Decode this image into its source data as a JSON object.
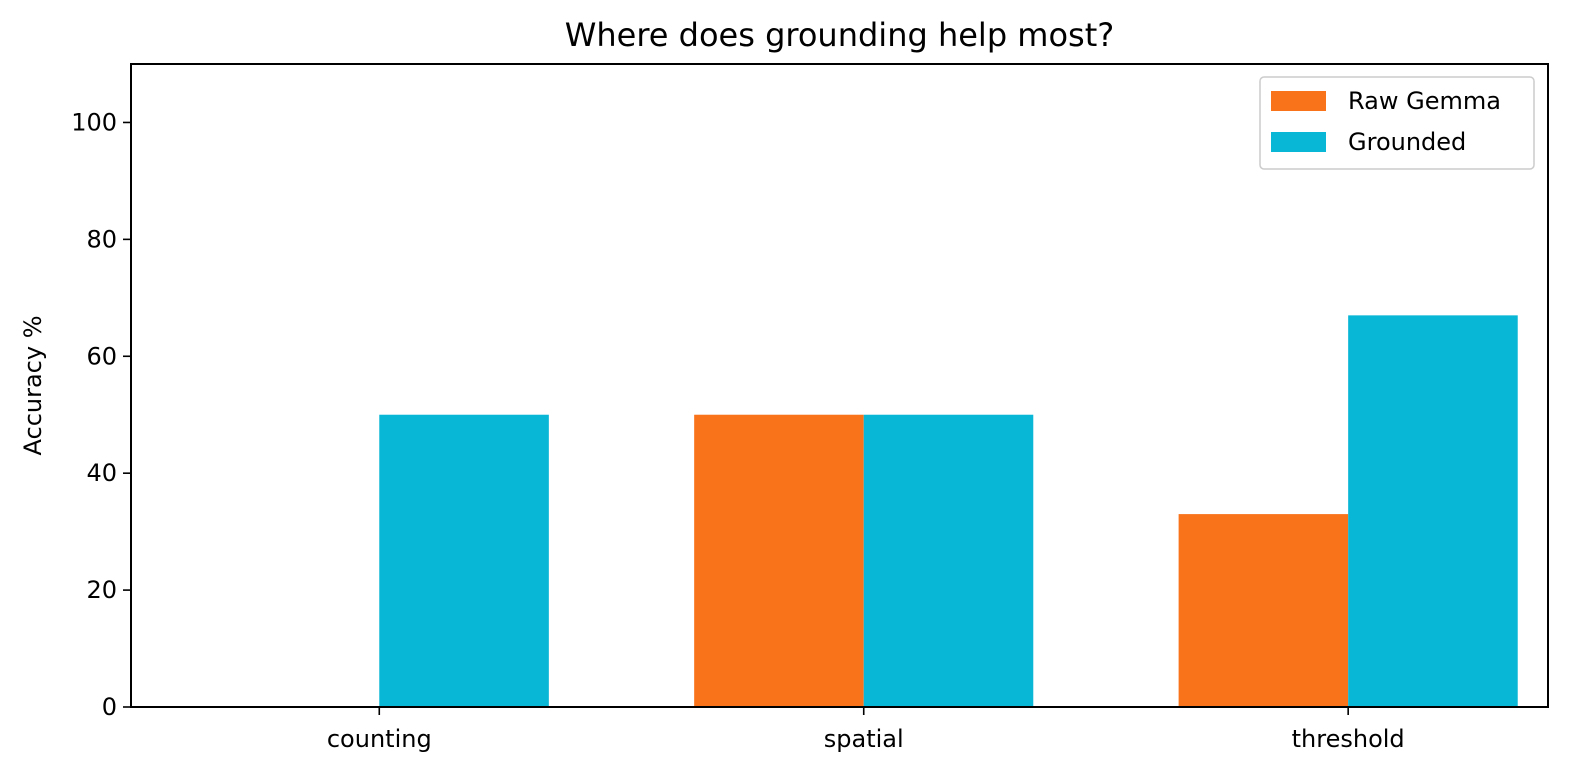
{
  "chart_data": {
    "type": "bar",
    "title": "Where does grounding help most?",
    "xlabel": "",
    "ylabel": "Accuracy %",
    "categories": [
      "counting",
      "spatial",
      "threshold"
    ],
    "series": [
      {
        "name": "Raw Gemma",
        "color": "#f8731a",
        "values": [
          0,
          50,
          33
        ]
      },
      {
        "name": "Grounded",
        "color": "#08b6d5",
        "values": [
          50,
          50,
          67
        ]
      }
    ],
    "ylim": [
      0,
      110
    ],
    "yticks": [
      0,
      20,
      40,
      60,
      80,
      100
    ],
    "grid": false,
    "legend_position": "top-right"
  }
}
